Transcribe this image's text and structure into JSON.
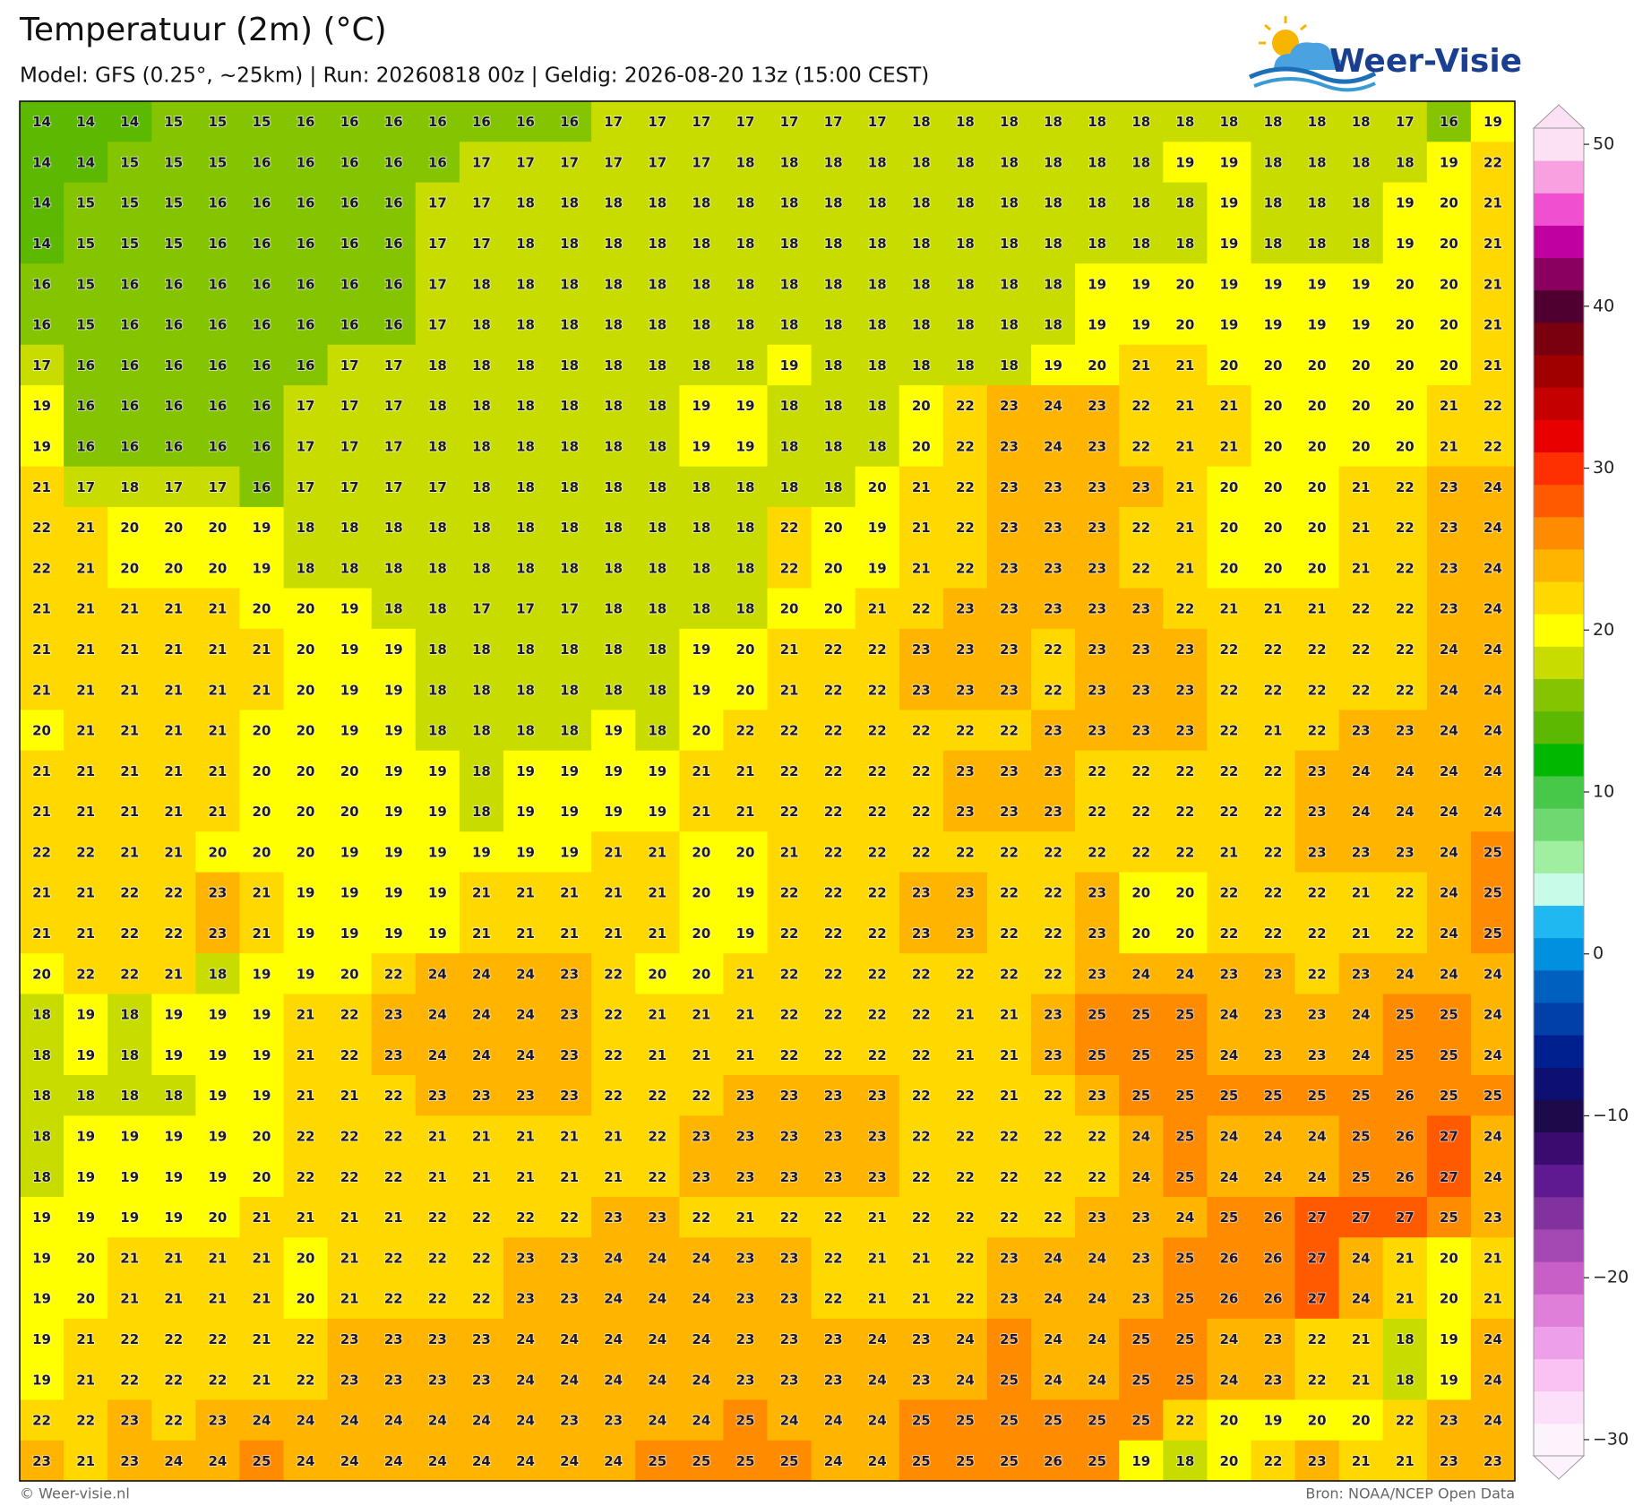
{
  "header": {
    "title": "Temperatuur (2m) (°C)",
    "subtitle": "Model: GFS (0.25°, ~25km)  |  Run: 20260818 00z  |  Geldig: 2026-08-20 13z (15:00 CEST)",
    "logo": "Weer-Visie"
  },
  "footer": {
    "left": "© Weer-visie.nl",
    "right": "Bron: NOAA/NCEP Open Data"
  },
  "map": {
    "rows": [
      [
        14,
        14,
        14,
        15,
        15,
        15,
        16,
        16,
        16,
        16,
        16,
        16,
        16,
        17,
        17,
        17,
        17,
        17,
        17,
        17,
        18,
        18,
        18,
        18,
        18,
        18,
        18,
        18,
        18,
        18,
        18,
        17,
        16,
        19
      ],
      [
        14,
        14,
        15,
        15,
        15,
        16,
        16,
        16,
        16,
        16,
        17,
        17,
        17,
        17,
        17,
        17,
        18,
        18,
        18,
        18,
        18,
        18,
        18,
        18,
        18,
        18,
        19,
        19,
        18,
        18,
        18,
        18,
        19,
        22
      ],
      [
        14,
        15,
        15,
        15,
        16,
        16,
        16,
        16,
        16,
        17,
        17,
        18,
        18,
        18,
        18,
        18,
        18,
        18,
        18,
        18,
        18,
        18,
        18,
        18,
        18,
        18,
        18,
        19,
        18,
        18,
        18,
        19,
        20,
        21
      ],
      [
        14,
        15,
        15,
        15,
        16,
        16,
        16,
        16,
        16,
        17,
        17,
        18,
        18,
        18,
        18,
        18,
        18,
        18,
        18,
        18,
        18,
        18,
        18,
        18,
        18,
        18,
        18,
        19,
        18,
        18,
        18,
        19,
        20,
        21
      ],
      [
        16,
        15,
        16,
        16,
        16,
        16,
        16,
        16,
        16,
        17,
        18,
        18,
        18,
        18,
        18,
        18,
        18,
        18,
        18,
        18,
        18,
        18,
        18,
        18,
        19,
        19,
        20,
        19,
        19,
        19,
        19,
        20,
        20,
        21
      ],
      [
        16,
        15,
        16,
        16,
        16,
        16,
        16,
        16,
        16,
        17,
        18,
        18,
        18,
        18,
        18,
        18,
        18,
        18,
        18,
        18,
        18,
        18,
        18,
        18,
        19,
        19,
        20,
        19,
        19,
        19,
        19,
        20,
        20,
        21
      ],
      [
        17,
        16,
        16,
        16,
        16,
        16,
        16,
        17,
        17,
        18,
        18,
        18,
        18,
        18,
        18,
        18,
        18,
        19,
        18,
        18,
        18,
        18,
        18,
        19,
        20,
        21,
        21,
        20,
        20,
        20,
        20,
        20,
        20,
        21
      ],
      [
        19,
        16,
        16,
        16,
        16,
        16,
        17,
        17,
        17,
        18,
        18,
        18,
        18,
        18,
        18,
        19,
        19,
        18,
        18,
        18,
        20,
        22,
        23,
        24,
        23,
        22,
        21,
        21,
        20,
        20,
        20,
        20,
        21,
        22
      ],
      [
        19,
        16,
        16,
        16,
        16,
        16,
        17,
        17,
        17,
        18,
        18,
        18,
        18,
        18,
        18,
        19,
        19,
        18,
        18,
        18,
        20,
        22,
        23,
        24,
        23,
        22,
        21,
        21,
        20,
        20,
        20,
        20,
        21,
        22
      ],
      [
        21,
        17,
        18,
        17,
        17,
        16,
        17,
        17,
        17,
        17,
        18,
        18,
        18,
        18,
        18,
        18,
        18,
        18,
        18,
        20,
        21,
        22,
        23,
        23,
        23,
        23,
        21,
        20,
        20,
        20,
        21,
        22,
        23,
        24
      ],
      [
        22,
        21,
        20,
        20,
        20,
        19,
        18,
        18,
        18,
        18,
        18,
        18,
        18,
        18,
        18,
        18,
        18,
        22,
        20,
        19,
        21,
        22,
        23,
        23,
        23,
        22,
        21,
        20,
        20,
        20,
        21,
        22,
        23,
        24
      ],
      [
        22,
        21,
        20,
        20,
        20,
        19,
        18,
        18,
        18,
        18,
        18,
        18,
        18,
        18,
        18,
        18,
        18,
        22,
        20,
        19,
        21,
        22,
        23,
        23,
        23,
        22,
        21,
        20,
        20,
        20,
        21,
        22,
        23,
        24
      ],
      [
        21,
        21,
        21,
        21,
        21,
        20,
        20,
        19,
        18,
        18,
        17,
        17,
        17,
        18,
        18,
        18,
        18,
        20,
        20,
        21,
        22,
        23,
        23,
        23,
        23,
        23,
        22,
        21,
        21,
        21,
        22,
        22,
        23,
        24
      ],
      [
        21,
        21,
        21,
        21,
        21,
        21,
        20,
        19,
        19,
        18,
        18,
        18,
        18,
        18,
        18,
        19,
        20,
        21,
        22,
        22,
        23,
        23,
        23,
        22,
        23,
        23,
        23,
        22,
        22,
        22,
        22,
        22,
        24,
        24
      ],
      [
        21,
        21,
        21,
        21,
        21,
        21,
        20,
        19,
        19,
        18,
        18,
        18,
        18,
        18,
        18,
        19,
        20,
        21,
        22,
        22,
        23,
        23,
        23,
        22,
        23,
        23,
        23,
        22,
        22,
        22,
        22,
        22,
        24,
        24
      ],
      [
        20,
        21,
        21,
        21,
        21,
        20,
        20,
        19,
        19,
        18,
        18,
        18,
        18,
        19,
        18,
        20,
        22,
        22,
        22,
        22,
        22,
        22,
        22,
        23,
        23,
        23,
        23,
        22,
        21,
        22,
        23,
        23,
        24,
        24
      ],
      [
        21,
        21,
        21,
        21,
        21,
        20,
        20,
        20,
        19,
        19,
        18,
        19,
        19,
        19,
        19,
        21,
        21,
        22,
        22,
        22,
        22,
        23,
        23,
        23,
        22,
        22,
        22,
        22,
        22,
        23,
        24,
        24,
        24,
        24
      ],
      [
        21,
        21,
        21,
        21,
        21,
        20,
        20,
        20,
        19,
        19,
        18,
        19,
        19,
        19,
        19,
        21,
        21,
        22,
        22,
        22,
        22,
        23,
        23,
        23,
        22,
        22,
        22,
        22,
        22,
        23,
        24,
        24,
        24,
        24
      ],
      [
        22,
        22,
        21,
        21,
        20,
        20,
        20,
        19,
        19,
        19,
        19,
        19,
        19,
        21,
        21,
        20,
        20,
        21,
        22,
        22,
        22,
        22,
        22,
        22,
        22,
        22,
        22,
        21,
        22,
        23,
        23,
        23,
        24,
        25
      ],
      [
        21,
        21,
        22,
        22,
        23,
        21,
        19,
        19,
        19,
        19,
        21,
        21,
        21,
        21,
        21,
        20,
        19,
        22,
        22,
        22,
        23,
        23,
        22,
        22,
        23,
        20,
        20,
        22,
        22,
        22,
        21,
        22,
        24,
        25
      ],
      [
        21,
        21,
        22,
        22,
        23,
        21,
        19,
        19,
        19,
        19,
        21,
        21,
        21,
        21,
        21,
        20,
        19,
        22,
        22,
        22,
        23,
        23,
        22,
        22,
        23,
        20,
        20,
        22,
        22,
        22,
        21,
        22,
        24,
        25
      ],
      [
        20,
        22,
        22,
        21,
        18,
        19,
        19,
        20,
        22,
        24,
        24,
        24,
        23,
        22,
        20,
        20,
        21,
        22,
        22,
        22,
        22,
        22,
        22,
        22,
        23,
        24,
        24,
        23,
        23,
        22,
        23,
        24,
        24,
        24
      ],
      [
        18,
        19,
        18,
        19,
        19,
        19,
        21,
        22,
        23,
        24,
        24,
        24,
        23,
        22,
        21,
        21,
        21,
        22,
        22,
        22,
        22,
        21,
        21,
        23,
        25,
        25,
        25,
        24,
        23,
        23,
        24,
        25,
        25,
        24
      ],
      [
        18,
        19,
        18,
        19,
        19,
        19,
        21,
        22,
        23,
        24,
        24,
        24,
        23,
        22,
        21,
        21,
        21,
        22,
        22,
        22,
        22,
        21,
        21,
        23,
        25,
        25,
        25,
        24,
        23,
        23,
        24,
        25,
        25,
        24
      ],
      [
        18,
        18,
        18,
        18,
        19,
        19,
        21,
        21,
        22,
        23,
        23,
        23,
        23,
        22,
        22,
        22,
        23,
        23,
        23,
        23,
        22,
        22,
        21,
        22,
        23,
        25,
        25,
        25,
        25,
        25,
        25,
        26,
        25,
        25
      ],
      [
        18,
        19,
        19,
        19,
        19,
        20,
        22,
        22,
        22,
        21,
        21,
        21,
        21,
        21,
        22,
        23,
        23,
        23,
        23,
        23,
        22,
        22,
        22,
        22,
        22,
        24,
        25,
        24,
        24,
        24,
        25,
        26,
        27,
        24
      ],
      [
        18,
        19,
        19,
        19,
        19,
        20,
        22,
        22,
        22,
        21,
        21,
        21,
        21,
        21,
        22,
        23,
        23,
        23,
        23,
        23,
        22,
        22,
        22,
        22,
        22,
        24,
        25,
        24,
        24,
        24,
        25,
        26,
        27,
        24
      ],
      [
        19,
        19,
        19,
        19,
        20,
        21,
        21,
        21,
        21,
        22,
        22,
        22,
        22,
        23,
        23,
        22,
        21,
        22,
        22,
        21,
        22,
        22,
        22,
        22,
        23,
        23,
        24,
        25,
        26,
        27,
        27,
        27,
        25,
        23
      ],
      [
        19,
        20,
        21,
        21,
        21,
        21,
        20,
        21,
        22,
        22,
        22,
        23,
        23,
        24,
        24,
        24,
        23,
        23,
        22,
        21,
        21,
        22,
        23,
        24,
        24,
        23,
        25,
        26,
        26,
        27,
        24,
        21,
        20,
        21
      ],
      [
        19,
        20,
        21,
        21,
        21,
        21,
        20,
        21,
        22,
        22,
        22,
        23,
        23,
        24,
        24,
        24,
        23,
        23,
        22,
        21,
        21,
        22,
        23,
        24,
        24,
        23,
        25,
        26,
        26,
        27,
        24,
        21,
        20,
        21
      ],
      [
        19,
        21,
        22,
        22,
        22,
        21,
        22,
        23,
        23,
        23,
        23,
        24,
        24,
        24,
        24,
        24,
        23,
        23,
        23,
        24,
        23,
        24,
        25,
        24,
        24,
        25,
        25,
        24,
        23,
        22,
        21,
        18,
        19,
        24
      ],
      [
        19,
        21,
        22,
        22,
        22,
        21,
        22,
        23,
        23,
        23,
        23,
        24,
        24,
        24,
        24,
        24,
        23,
        23,
        23,
        24,
        23,
        24,
        25,
        24,
        24,
        25,
        25,
        24,
        23,
        22,
        21,
        18,
        19,
        24
      ],
      [
        22,
        22,
        23,
        22,
        23,
        24,
        24,
        24,
        24,
        24,
        24,
        24,
        23,
        23,
        24,
        24,
        25,
        24,
        24,
        24,
        25,
        25,
        25,
        25,
        25,
        25,
        22,
        20,
        19,
        20,
        20,
        22,
        23,
        24
      ],
      [
        23,
        21,
        23,
        24,
        24,
        25,
        24,
        24,
        24,
        24,
        24,
        24,
        24,
        24,
        25,
        25,
        25,
        25,
        24,
        24,
        25,
        25,
        25,
        26,
        25,
        19,
        18,
        20,
        22,
        23,
        21,
        21,
        23,
        23
      ]
    ]
  },
  "colorbar": {
    "lim": [
      -31,
      51
    ],
    "ticks": [
      50,
      40,
      30,
      20,
      10,
      0,
      {
        "value": -10,
        "label": "−10"
      },
      {
        "value": -20,
        "label": "−20"
      },
      {
        "value": -30,
        "label": "−30"
      }
    ],
    "colors": [
      "#fdf3fd",
      "#fce0fa",
      "#f9c2f3",
      "#ee9fe9",
      "#df7fd9",
      "#c75fc6",
      "#a448b3",
      "#82329f",
      "#5f1a91",
      "#3b0b70",
      "#1c0a4a",
      "#0d1070",
      "#00208f",
      "#0040a8",
      "#0060c0",
      "#0090e0",
      "#20b8f0",
      "#c8fce8",
      "#a0eea0",
      "#70d870",
      "#48c848",
      "#00b800",
      "#5cb800",
      "#84c400",
      "#c8dc00",
      "#ffff00",
      "#ffd800",
      "#ffb400",
      "#ff8c00",
      "#ff5a00",
      "#ff3000",
      "#e80000",
      "#c40000",
      "#a00000",
      "#7a0010",
      "#500030",
      "#8a0060",
      "#c000a0",
      "#f050d0",
      "#f8a0e0",
      "#fce0f4"
    ]
  }
}
